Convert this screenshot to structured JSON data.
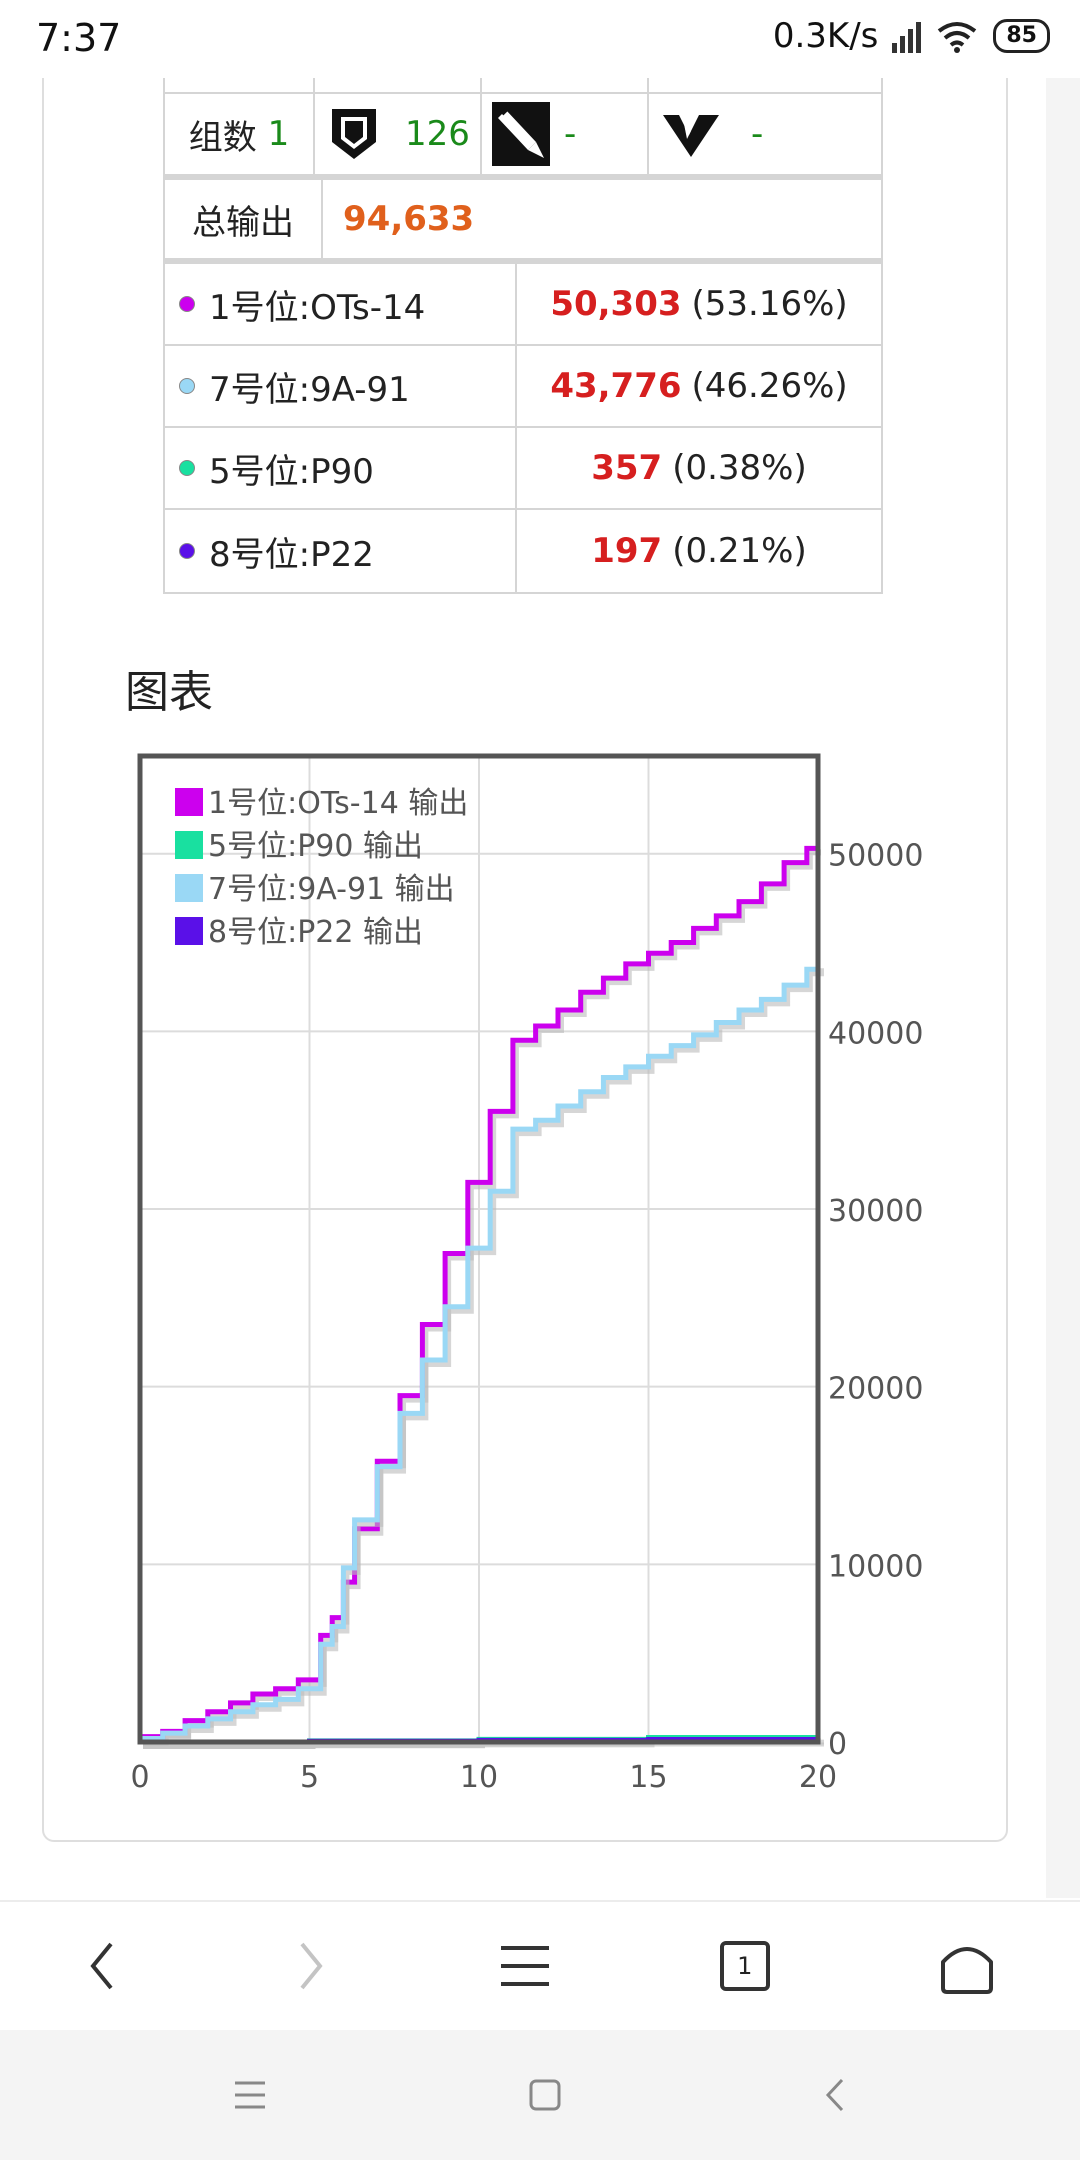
{
  "status": {
    "time": "7:37",
    "net_speed": "0.3K/s",
    "battery": "85"
  },
  "table": {
    "group_label": "组数",
    "group_value": "1",
    "equip": [
      {
        "icon": "shield-icon",
        "value": "126"
      },
      {
        "icon": "bullet-icon",
        "value": "-"
      },
      {
        "icon": "v-emblem-icon",
        "value": "-"
      }
    ],
    "total_label": "总输出",
    "total_value": "94,633",
    "rows": [
      {
        "label": "1号位:OTs-14",
        "value": "50,303",
        "pct": "(53.16%)",
        "color": "#cc00ee"
      },
      {
        "label": "7号位:9A-91",
        "value": "43,776",
        "pct": "(46.26%)",
        "color": "#9ad8f5"
      },
      {
        "label": "5号位:P90",
        "value": "357",
        "pct": "(0.38%)",
        "color": "#19e0a0"
      },
      {
        "label": "8号位:P22",
        "value": "197",
        "pct": "(0.21%)",
        "color": "#5a10e8"
      }
    ]
  },
  "section_title": "图表",
  "chart_data": {
    "type": "line",
    "title": "",
    "xlabel": "",
    "ylabel": "",
    "xlim": [
      0,
      20
    ],
    "ylim": [
      0,
      55500
    ],
    "xticks": [
      "0",
      "5",
      "10",
      "15",
      "20"
    ],
    "yticks": [
      "0",
      "10000",
      "20000",
      "30000",
      "40000",
      "50000"
    ],
    "grid": true,
    "legend_position": "top-left",
    "step": true,
    "series": [
      {
        "name": "1号位:OTs-14 输出",
        "color": "#cc00ee",
        "x": [
          0,
          0.67,
          1.33,
          2.0,
          2.67,
          3.33,
          4.0,
          4.67,
          5.33,
          5.67,
          6.0,
          6.33,
          7.0,
          7.67,
          8.33,
          9.0,
          9.67,
          10.33,
          11.0,
          11.67,
          12.33,
          13.0,
          13.67,
          14.33,
          15.0,
          15.67,
          16.33,
          17.0,
          17.67,
          18.33,
          19.0,
          19.67,
          20.0
        ],
        "y": [
          300,
          600,
          1200,
          1700,
          2200,
          2700,
          3000,
          3500,
          6000,
          7000,
          9000,
          12000,
          15800,
          19500,
          23500,
          27500,
          31500,
          35500,
          39500,
          40300,
          41200,
          42200,
          43000,
          43800,
          44400,
          45000,
          45800,
          46500,
          47300,
          48300,
          49500,
          50300,
          50300
        ]
      },
      {
        "name": "5号位:P90 输出",
        "color": "#19e0a0",
        "x": [
          0,
          5,
          10,
          15,
          20
        ],
        "y": [
          0,
          60,
          150,
          250,
          357
        ]
      },
      {
        "name": "7号位:9A-91 输出",
        "color": "#9ad8f5",
        "x": [
          0,
          0.67,
          1.33,
          2.0,
          2.67,
          3.33,
          4.0,
          4.67,
          5.33,
          5.67,
          6.0,
          6.33,
          7.0,
          7.67,
          8.33,
          9.0,
          9.67,
          10.33,
          11.0,
          11.67,
          12.33,
          13.0,
          13.67,
          14.33,
          15.0,
          15.67,
          16.33,
          17.0,
          17.67,
          18.33,
          19.0,
          19.67,
          20.0
        ],
        "y": [
          200,
          500,
          900,
          1300,
          1700,
          2100,
          2400,
          3000,
          5500,
          6500,
          9800,
          12500,
          15500,
          18500,
          21500,
          24500,
          27800,
          31000,
          34500,
          35000,
          35800,
          36600,
          37400,
          38000,
          38600,
          39200,
          39800,
          40500,
          41200,
          41800,
          42600,
          43500,
          43776
        ]
      },
      {
        "name": "8号位:P22 输出",
        "color": "#5a10e8",
        "x": [
          0,
          5,
          10,
          15,
          20
        ],
        "y": [
          0,
          40,
          90,
          140,
          197
        ]
      }
    ]
  },
  "nav": {
    "back": "back-icon",
    "forward": "forward-icon",
    "menu": "menu-icon",
    "tabs_count": "1",
    "home": "home-icon"
  }
}
